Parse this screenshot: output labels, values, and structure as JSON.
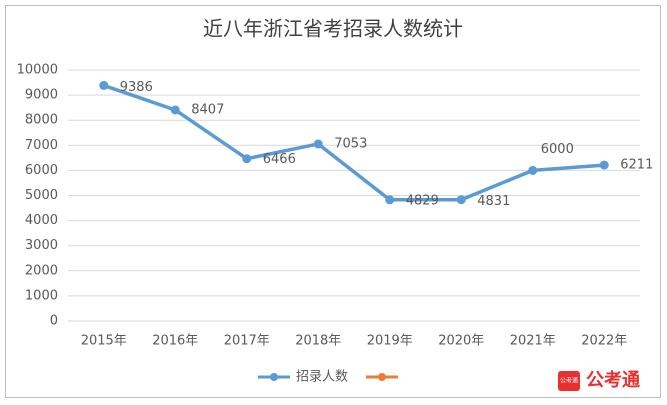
{
  "chart_data": {
    "type": "line",
    "title": "近八年浙江省考招录人数统计",
    "categories": [
      "2015年",
      "2016年",
      "2017年",
      "2018年",
      "2019年",
      "2020年",
      "2021年",
      "2022年"
    ],
    "series": [
      {
        "name": "招录人数",
        "color": "#5b9bd5",
        "values": [
          9386,
          8407,
          6466,
          7053,
          4829,
          4831,
          6000,
          6211
        ]
      }
    ],
    "ylim": [
      0,
      10000
    ],
    "yticks": [
      0,
      1000,
      2000,
      3000,
      4000,
      5000,
      6000,
      7000,
      8000,
      9000,
      10000
    ],
    "grid": true,
    "legend": "bottom",
    "watermark": "公考通"
  }
}
